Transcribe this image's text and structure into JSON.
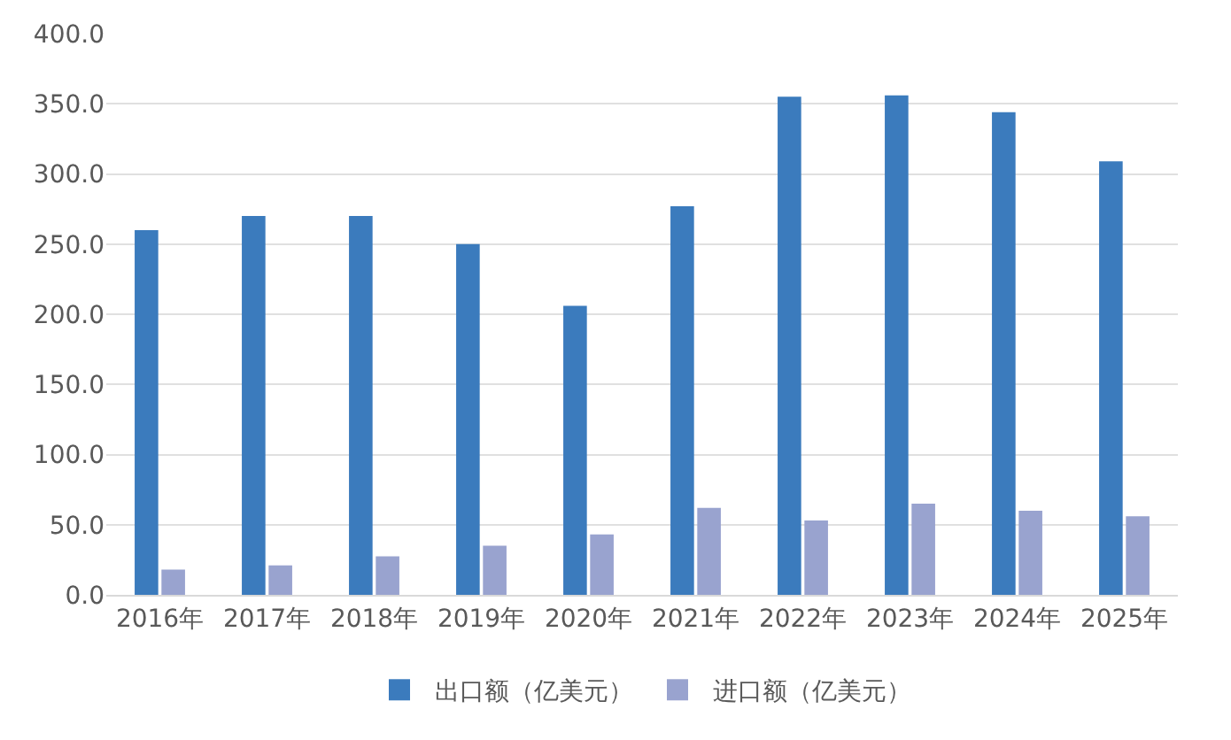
{
  "chart_data": {
    "type": "bar",
    "categories": [
      "2016年",
      "2017年",
      "2018年",
      "2019年",
      "2020年",
      "2021年",
      "2022年",
      "2023年",
      "2024年",
      "2025年"
    ],
    "series": [
      {
        "name": "出口额（亿美元）",
        "color": "#3b7bbd",
        "values": [
          260,
          270,
          270,
          250,
          206,
          277,
          355,
          356,
          344,
          309
        ]
      },
      {
        "name": "进口额（亿美元）",
        "color": "#99a3cf",
        "values": [
          18,
          21,
          27.5,
          35,
          43,
          62,
          53,
          65,
          60,
          56
        ]
      }
    ],
    "ylim": [
      0,
      400
    ],
    "yticks": [
      {
        "value": 0,
        "label": "0.0"
      },
      {
        "value": 50,
        "label": "50.0"
      },
      {
        "value": 100,
        "label": "100.0"
      },
      {
        "value": 150,
        "label": "150.0"
      },
      {
        "value": 200,
        "label": "200.0"
      },
      {
        "value": 250,
        "label": "250.0"
      },
      {
        "value": 300,
        "label": "300.0"
      },
      {
        "value": 350,
        "label": "350.0"
      },
      {
        "value": 400,
        "label": "400.0"
      }
    ],
    "grid": "y",
    "legend": "bottom"
  }
}
